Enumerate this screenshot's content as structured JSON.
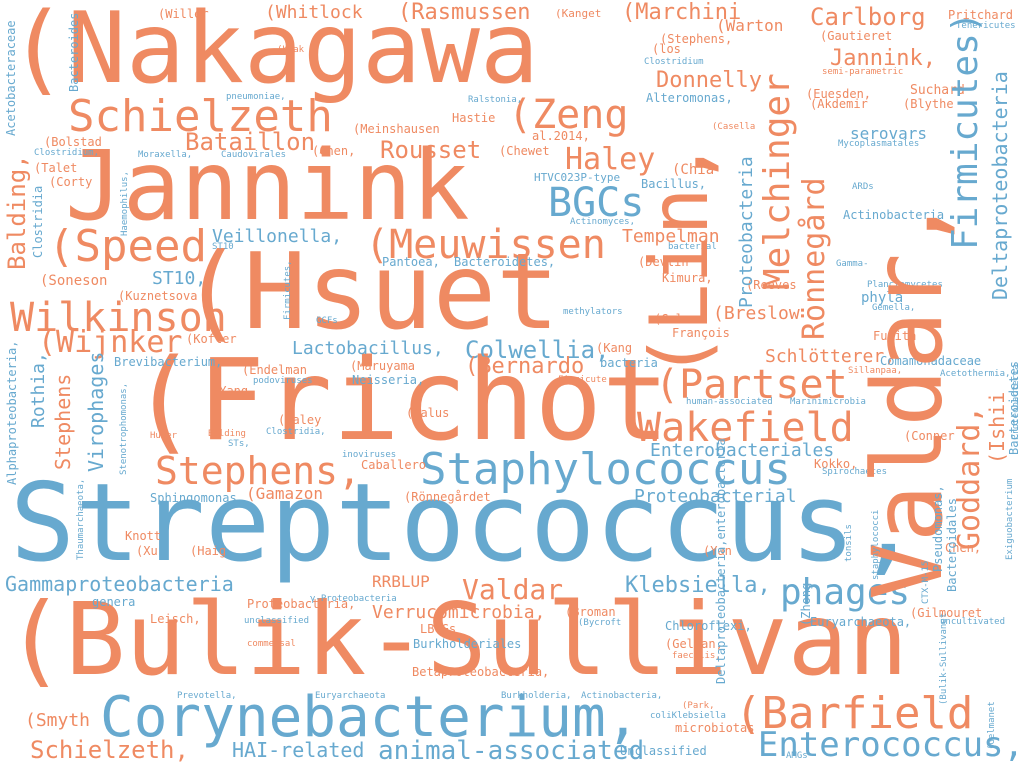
{
  "palette": {
    "orange": "#ef8a62",
    "blue": "#67a9cf",
    "background": "#ffffff"
  },
  "words": [
    "(Nakagawa",
    "Jannink",
    "(Hsuet",
    "(Frichot",
    "Streptococcus,",
    "(Bulik-Sullivan",
    "Valdar,",
    "(Lin,",
    "Corynebacterium,",
    "Schielzeth",
    "Staphylococcus",
    "Firmicutes)",
    "(Speed",
    "(Meuwissen",
    "Wilkinson",
    "Melchinger",
    "Wakefield",
    "(Partset",
    "Stephens,",
    "(Barfield",
    "(Zeng",
    "BGCs",
    "Haley",
    "Rönnegård",
    "Goddard,",
    "Enterococcus,",
    "Deltaproteobacteria",
    "phages",
    "Balding,",
    "(Wijnker",
    "Bataillon,",
    "Rousset",
    "Carlborg",
    "Jannink,",
    "Donnelly",
    "Gammaproteobacteria",
    "Valdar",
    "Klebsiella,",
    "Schielzeth,",
    "animal-associated",
    "HAI-related",
    "Proteobacteria",
    "Colwellia,",
    "Lactobacillus,",
    "(Bernardo",
    "Schlötterer,",
    "(Smyth",
    "(Breslow",
    "Tempelman",
    "Enterobacteriales",
    "Proteobacterial",
    "Veillonella,",
    "ST10,",
    "Stephens",
    "Virophages",
    "Rothia,",
    "(Ishii",
    "(Rasmussen",
    "(Marchini",
    "(Whitlock",
    "(Willer",
    "(Kanget",
    "(Warton",
    "(Stephens,",
    "Pritchard",
    "(Gautieret",
    "Tenericutes",
    "Suchard",
    "(Euesden,",
    "(Akdemir",
    "(Blythe",
    "serovars",
    "Mycoplasmatales",
    "Actinobacteria",
    "ARDs",
    "(Chia",
    "Bacillus,",
    "HTVC023P-type",
    "Actinomyces,",
    "(Chen,",
    "(Chewet",
    "(Meinshausen",
    "Hastie",
    "al.2014,",
    "Alteromonas,",
    "Ralstonia,",
    "(Casella",
    "(Bolstad",
    "Clostridium,",
    "Moraxella,",
    "Caudovirales",
    "(Talet",
    "(Corty",
    "Haemophilus,",
    "pneumoniae,",
    "(Kwak",
    "(los",
    "Clostridium",
    "semi-parametric",
    "Bacteroides",
    "Acetobacteraceae",
    "(Soneson",
    "(Kuznetsova",
    "Clostridia",
    "ST10",
    "Pantoea,",
    "Bacteroidetes,",
    "bacterial",
    "(Devlin",
    "Kimura,",
    "(Reeves",
    "phyla",
    "Gamma-",
    "Planctomycetes",
    "Gemella,",
    "Fujita",
    "methylators",
    "GCFs",
    "Firmicutes,",
    "(Golan",
    "François",
    "(Kofler",
    "Brevibacterium,",
    "(Kang",
    "bacteria",
    "(Endelman",
    "podoviruses",
    "(Maruyama",
    "Neisseria,",
    "Firmicute",
    "Sillanpaa,",
    "Comamonadaceae",
    "Acetothermia,",
    "Alphaproteobacteria,",
    "(Yang",
    "(Haley",
    "Clostridia,",
    "(Calus",
    "human-associated",
    "Marinimicrobia",
    "Bacteroidetes",
    "Huber",
    "Balding",
    "STs,",
    "inoviruses",
    "Caballero",
    "(Conner",
    "Kokko,",
    "Spirochaetes",
    "Thaumarchaeota,",
    "Stenotrophomonas,",
    "Sphingomonas,",
    "(Gamazon",
    "(Rönnegårdet",
    "Knott",
    "(Xu",
    "(Haig",
    "(Yan",
    "Chen,",
    "Pseudomonas,",
    "CTX-M-15",
    "Exiguobacterium",
    "Bacteroidales",
    "staphylococci",
    "genera",
    "Proteobacteria,",
    "γ-Proteobacteria",
    "RRBLUP",
    "Verrucomicrobia,",
    "(Broman",
    "(Bycroft",
    "(Gilmouret",
    "uncultivated",
    "Euryarchaeota,",
    "Chloroflexi,",
    "unclassified",
    "LBVGs",
    "Burkholderiales",
    "Leisch,",
    "commensal",
    "(Gelman,",
    "faecalis,",
    "(Park,",
    "tonsils",
    "Prevotella,",
    "Euryarchaeota",
    "Burkholderia,",
    "Actinobacteria,",
    "coliKlebsiella",
    "microbiotas",
    "Unclassified",
    "AMGs",
    "(Zhong",
    "Betaproteobacteria,",
    "Deltaproteobacteria,enterobacteria",
    "(Bulik-Sullivanet",
    "(Gelmanet"
  ]
}
